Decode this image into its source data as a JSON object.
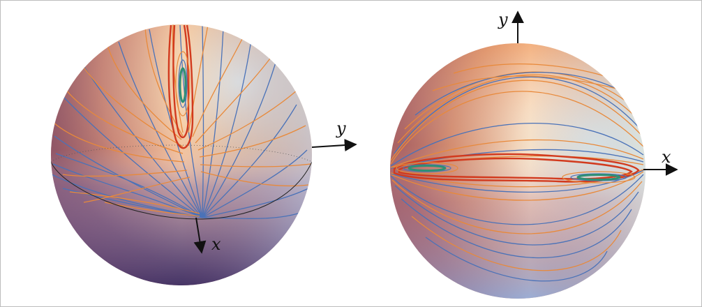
{
  "figure": {
    "left_panel": {
      "axis_labels": {
        "y": "y",
        "x": "x"
      }
    },
    "right_panel": {
      "axis_labels": {
        "y": "y",
        "x": "x"
      }
    }
  },
  "colors": {
    "trajectory_blue": "#4a72b8",
    "trajectory_orange": "#e8893a",
    "separatrix_red": "#d23a1e",
    "limit_cycle_green": "#2f8f75",
    "sphere_top": "#f4b07a",
    "sphere_light": "#eaf6f3",
    "sphere_dark": "#4a3e72",
    "sphere_blue": "#9fb4de"
  }
}
